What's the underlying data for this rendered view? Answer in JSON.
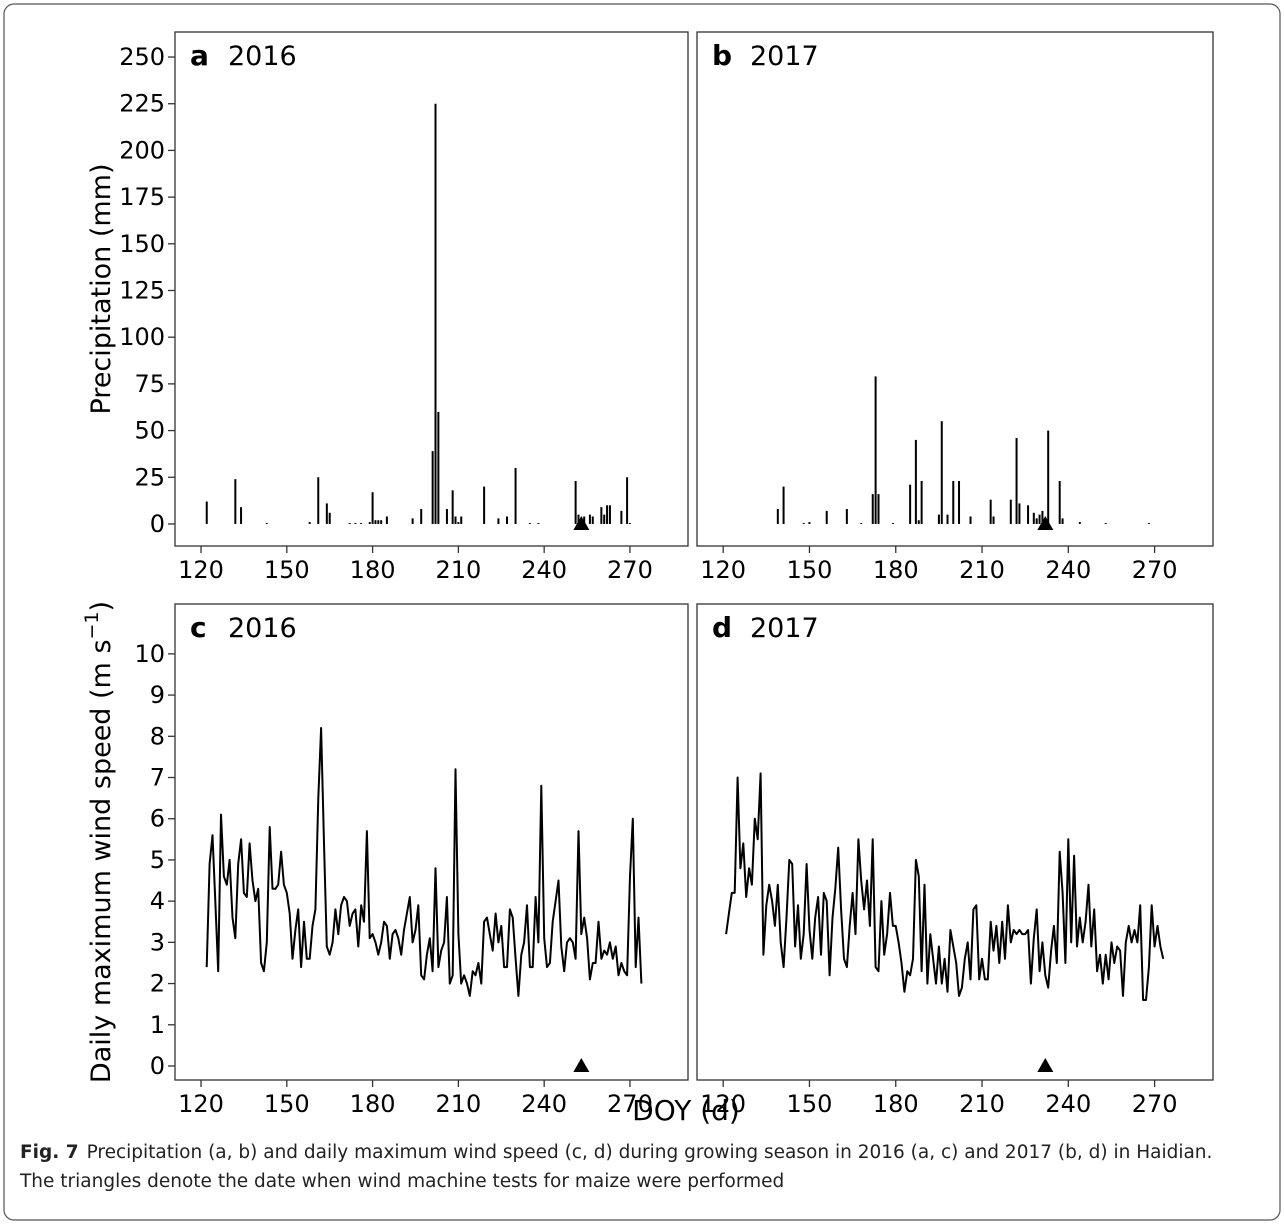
{
  "xlabel": "DOY (d)",
  "caption": {
    "label": "Fig. 7",
    "text": "Precipitation (a, b) and daily maximum wind speed (c, d) during growing season in 2016 (a, c) and 2017 (b, d) in Haidian. The triangles denote the date when wind machine tests for maize were performed"
  },
  "chart_data": [
    {
      "type": "bar",
      "label": "a",
      "title": "2016",
      "ylabel": [
        "Precipitation (mm)"
      ],
      "color": "#000000",
      "x": [
        122,
        132,
        134,
        143,
        158,
        161,
        164,
        165,
        172,
        174,
        176,
        179,
        180,
        181,
        182,
        183,
        185,
        194,
        197,
        201,
        202,
        203,
        206,
        208,
        209,
        210,
        211,
        219,
        224,
        227,
        230,
        235,
        238,
        251,
        252,
        254,
        256,
        257,
        260,
        261,
        262,
        263,
        267,
        269,
        270
      ],
      "values": [
        12,
        24,
        9,
        0.5,
        1,
        25,
        11,
        6,
        0.5,
        0.5,
        0.5,
        1,
        17,
        2,
        2,
        2,
        4,
        3,
        8,
        39,
        225,
        60,
        8,
        18,
        4,
        1,
        4,
        20,
        3,
        4,
        30,
        0.5,
        0.5,
        23,
        5,
        4,
        5,
        4,
        9,
        5,
        10,
        10,
        7,
        25,
        0.5
      ],
      "markers": {
        "x": [
          253
        ],
        "values": [
          0
        ]
      },
      "xlim": [
        110.9,
        290.3
      ],
      "xticks": [
        120,
        150,
        180,
        210,
        240,
        270
      ],
      "ylim": [
        -11.8,
        263.4
      ],
      "yticks": [
        0,
        25,
        50,
        75,
        100,
        125,
        150,
        175,
        200,
        225,
        250
      ]
    },
    {
      "type": "bar",
      "label": "b",
      "title": "2017",
      "color": "#000000",
      "x": [
        139,
        141,
        148,
        150,
        156,
        163,
        168,
        172,
        173,
        174,
        179,
        185,
        187,
        188,
        189,
        195,
        196,
        198,
        200,
        202,
        206,
        213,
        214,
        220,
        222,
        223,
        226,
        228,
        229,
        230,
        231,
        233,
        237,
        238,
        244,
        253,
        268
      ],
      "values": [
        8,
        20,
        0.5,
        1,
        7,
        8,
        0.5,
        16,
        79,
        16,
        0.5,
        21,
        45,
        2,
        23,
        5,
        55,
        5,
        23,
        23,
        4,
        13,
        4,
        13,
        46,
        11,
        10,
        6,
        3,
        5,
        7,
        50,
        23,
        3,
        1,
        0.5,
        0.5
      ],
      "markers": {
        "x": [
          232
        ],
        "values": [
          0
        ]
      },
      "xlim": [
        110.9,
        290.3
      ],
      "xticks": [
        120,
        150,
        180,
        210,
        240,
        270
      ],
      "ylim": [
        -11.8,
        263.4
      ]
    },
    {
      "type": "line",
      "label": "c",
      "title": "2016",
      "ylabel": [
        "Daily maximum wind speed (m s",
        "−1",
        ")"
      ],
      "color": "#000000",
      "x": [
        122,
        123,
        124,
        125,
        126,
        127,
        128,
        129,
        130,
        131,
        132,
        133,
        134,
        135,
        136,
        137,
        138,
        139,
        140,
        141,
        142,
        143,
        144,
        145,
        146,
        147,
        148,
        149,
        150,
        151,
        152,
        153,
        154,
        155,
        156,
        157,
        158,
        159,
        160,
        161,
        162,
        163,
        164,
        165,
        166,
        167,
        168,
        169,
        170,
        171,
        172,
        173,
        174,
        175,
        176,
        177,
        178,
        179,
        180,
        181,
        182,
        183,
        184,
        185,
        186,
        187,
        188,
        189,
        190,
        191,
        192,
        193,
        194,
        195,
        196,
        197,
        198,
        199,
        200,
        201,
        202,
        203,
        204,
        205,
        206,
        207,
        208,
        209,
        210,
        211,
        212,
        213,
        214,
        215,
        216,
        217,
        218,
        219,
        220,
        221,
        222,
        223,
        224,
        225,
        226,
        227,
        228,
        229,
        230,
        231,
        232,
        233,
        234,
        235,
        236,
        237,
        238,
        239,
        240,
        241,
        242,
        243,
        244,
        245,
        246,
        247,
        248,
        249,
        250,
        251,
        252,
        253,
        254,
        255,
        256,
        257,
        258,
        259,
        260,
        261,
        262,
        263,
        264,
        265,
        266,
        267,
        268,
        269,
        270,
        271,
        272,
        273,
        274
      ],
      "values": [
        2.4,
        4.9,
        5.6,
        4.0,
        2.3,
        6.1,
        4.6,
        4.4,
        5.0,
        3.6,
        3.1,
        4.9,
        5.5,
        4.2,
        4.1,
        5.4,
        4.5,
        4.0,
        4.3,
        2.5,
        2.3,
        3.0,
        5.8,
        4.3,
        4.3,
        4.4,
        5.2,
        4.4,
        4.2,
        3.7,
        2.6,
        3.3,
        3.8,
        2.4,
        3.5,
        2.6,
        2.6,
        3.4,
        3.8,
        6.5,
        8.2,
        5.4,
        2.9,
        2.7,
        3.0,
        3.8,
        3.2,
        3.9,
        4.1,
        4.0,
        3.4,
        3.7,
        3.8,
        2.9,
        3.9,
        3.5,
        5.7,
        3.1,
        3.2,
        3.0,
        2.7,
        3.0,
        3.5,
        3.4,
        2.6,
        3.2,
        3.3,
        3.1,
        2.7,
        3.3,
        3.7,
        4.1,
        3.0,
        3.3,
        3.9,
        2.2,
        2.1,
        2.7,
        3.1,
        2.3,
        4.8,
        2.4,
        2.8,
        3.0,
        4.1,
        2.0,
        2.2,
        7.2,
        3.2,
        2.0,
        2.2,
        2.0,
        1.7,
        2.3,
        2.2,
        2.5,
        2.0,
        3.5,
        3.6,
        3.2,
        2.8,
        3.7,
        3.0,
        3.4,
        2.4,
        2.4,
        3.8,
        3.6,
        2.6,
        1.7,
        2.7,
        3.0,
        3.9,
        2.4,
        2.4,
        4.1,
        3.0,
        6.8,
        3.1,
        2.4,
        2.5,
        3.5,
        4.0,
        4.5,
        2.9,
        2.3,
        3.0,
        3.1,
        3.0,
        2.6,
        5.7,
        3.2,
        3.6,
        3.1,
        2.1,
        2.5,
        2.5,
        3.5,
        2.6,
        2.8,
        2.7,
        3.0,
        2.6,
        2.9,
        2.2,
        2.5,
        2.3,
        2.2,
        4.6,
        6.0,
        2.4,
        3.6,
        2.0
      ],
      "markers": {
        "x": [
          253
        ],
        "values": [
          0
        ]
      },
      "xlim": [
        110.9,
        290.3
      ],
      "xticks": [
        120,
        150,
        180,
        210,
        240,
        270
      ],
      "ylim": [
        -0.34,
        11.21
      ],
      "yticks": [
        0,
        1,
        2,
        3,
        4,
        5,
        6,
        7,
        8,
        9,
        10
      ]
    },
    {
      "type": "line",
      "label": "d",
      "title": "2017",
      "color": "#000000",
      "x": [
        121,
        122,
        123,
        124,
        125,
        126,
        127,
        128,
        129,
        130,
        131,
        132,
        133,
        134,
        135,
        136,
        137,
        138,
        139,
        140,
        141,
        142,
        143,
        144,
        145,
        146,
        147,
        148,
        149,
        150,
        151,
        152,
        153,
        154,
        155,
        156,
        157,
        158,
        159,
        160,
        161,
        162,
        163,
        164,
        165,
        166,
        167,
        168,
        169,
        170,
        171,
        172,
        173,
        174,
        175,
        176,
        177,
        178,
        179,
        180,
        181,
        182,
        183,
        184,
        185,
        186,
        187,
        188,
        189,
        190,
        191,
        192,
        193,
        194,
        195,
        196,
        197,
        198,
        199,
        200,
        201,
        202,
        203,
        204,
        205,
        206,
        207,
        208,
        209,
        210,
        211,
        212,
        213,
        214,
        215,
        216,
        217,
        218,
        219,
        220,
        221,
        222,
        223,
        224,
        225,
        226,
        227,
        228,
        229,
        230,
        231,
        232,
        233,
        234,
        235,
        236,
        237,
        238,
        239,
        240,
        241,
        242,
        243,
        244,
        245,
        246,
        247,
        248,
        249,
        250,
        251,
        252,
        253,
        254,
        255,
        256,
        257,
        258,
        259,
        260,
        261,
        262,
        263,
        264,
        265,
        266,
        267,
        268,
        269,
        270,
        271,
        272,
        273
      ],
      "values": [
        3.2,
        3.7,
        4.2,
        4.2,
        7.0,
        4.8,
        5.4,
        4.1,
        4.8,
        4.4,
        6.0,
        5.5,
        7.1,
        2.7,
        3.9,
        4.4,
        4.0,
        3.4,
        4.4,
        3.0,
        2.4,
        3.6,
        5.0,
        4.9,
        2.9,
        3.9,
        2.6,
        3.2,
        4.9,
        3.3,
        2.6,
        3.6,
        4.1,
        2.7,
        4.2,
        4.0,
        2.2,
        3.6,
        4.3,
        5.3,
        3.8,
        2.6,
        2.4,
        3.4,
        4.2,
        3.2,
        5.5,
        4.5,
        3.8,
        4.5,
        3.4,
        5.5,
        2.4,
        2.3,
        4.0,
        2.7,
        3.2,
        4.2,
        3.4,
        3.4,
        3.0,
        2.5,
        1.8,
        2.3,
        2.2,
        2.6,
        5.0,
        4.6,
        2.3,
        4.4,
        2.0,
        3.2,
        2.6,
        2.0,
        2.9,
        2.0,
        2.6,
        1.8,
        3.3,
        2.9,
        2.5,
        1.7,
        1.9,
        2.6,
        3.0,
        2.1,
        3.8,
        3.9,
        2.1,
        2.6,
        2.1,
        2.1,
        3.5,
        2.8,
        3.4,
        2.5,
        3.5,
        2.6,
        3.9,
        3.0,
        3.3,
        3.2,
        3.3,
        3.2,
        3.2,
        3.3,
        2.0,
        3.1,
        3.8,
        2.3,
        3.0,
        2.2,
        1.9,
        2.8,
        3.4,
        2.5,
        5.2,
        4.2,
        2.5,
        5.5,
        3.0,
        5.1,
        2.9,
        3.6,
        3.0,
        3.5,
        4.4,
        2.9,
        3.8,
        2.3,
        2.7,
        2.0,
        2.7,
        2.1,
        3.0,
        2.5,
        2.9,
        2.8,
        1.7,
        3.0,
        3.4,
        3.0,
        3.3,
        3.0,
        3.9,
        1.6,
        1.6,
        2.4,
        3.9,
        2.9,
        3.4,
        2.9,
        2.6
      ],
      "markers": {
        "x": [
          232
        ],
        "values": [
          0
        ]
      },
      "xlim": [
        110.9,
        290.3
      ],
      "xticks": [
        120,
        150,
        180,
        210,
        240,
        270
      ],
      "ylim": [
        -0.34,
        11.21
      ]
    }
  ]
}
